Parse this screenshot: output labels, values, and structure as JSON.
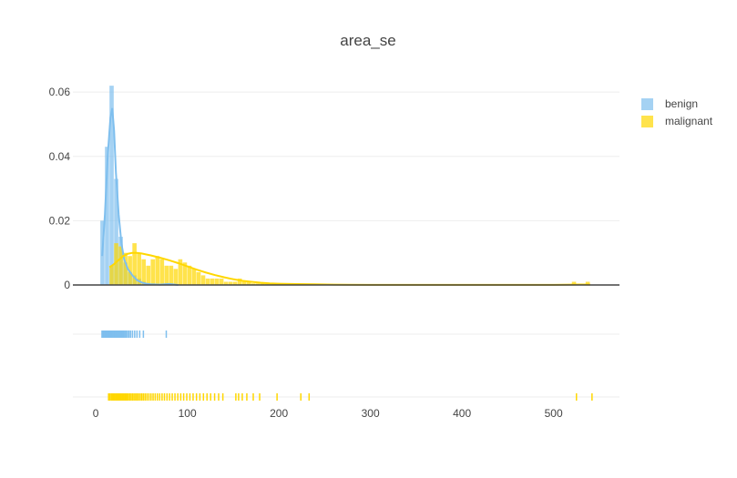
{
  "chart_data": {
    "type": "histogram",
    "title": "area_se",
    "xlabel": "",
    "ylabel": "",
    "xlim": [
      -25,
      572
    ],
    "ylim": [
      0,
      0.066
    ],
    "x_ticks": [
      0,
      100,
      200,
      300,
      400,
      500
    ],
    "x_tick_labels": [
      "0",
      "100",
      "200",
      "300",
      "400",
      "500"
    ],
    "y_ticks": [
      0,
      0.02,
      0.04,
      0.06
    ],
    "y_tick_labels": [
      "0",
      "0.02",
      "0.04",
      "0.06"
    ],
    "grid": true,
    "legend_position": "top-right",
    "bin_width": 5,
    "series": [
      {
        "name": "benign",
        "color": "#7fbfee",
        "bin_starts": [
          5,
          10,
          15,
          20,
          25,
          30,
          35,
          40,
          45,
          50,
          55,
          60,
          65,
          70,
          75
        ],
        "densities": [
          0.02,
          0.043,
          0.062,
          0.033,
          0.015,
          0.007,
          0.004,
          0.003,
          0.002,
          0.001,
          0.0005,
          0.0005,
          0.0003,
          0.0003,
          0.0005
        ],
        "kde_x": [
          7,
          10,
          13,
          16,
          18,
          20,
          22,
          25,
          28,
          31,
          35,
          40,
          45,
          50,
          55,
          60,
          70,
          80,
          90
        ],
        "kde_y": [
          0.009,
          0.022,
          0.04,
          0.052,
          0.055,
          0.048,
          0.035,
          0.022,
          0.013,
          0.008,
          0.005,
          0.003,
          0.0015,
          0.0008,
          0.0004,
          0.0002,
          0.0001,
          0.0003,
          0.0
        ],
        "rug": [
          6.8,
          7.5,
          8.1,
          8.9,
          9.4,
          10.1,
          10.7,
          11.3,
          11.9,
          12.5,
          13.2,
          13.8,
          14.4,
          15.1,
          15.7,
          16.3,
          17.0,
          17.6,
          18.2,
          18.9,
          19.5,
          20.1,
          20.8,
          21.4,
          22.0,
          22.7,
          23.3,
          24.0,
          24.8,
          25.6,
          26.5,
          27.4,
          28.3,
          29.3,
          30.2,
          31.5,
          33.0,
          34.6,
          36.2,
          38.0,
          40.1,
          42.5,
          45.0,
          48.0,
          52.0,
          77.0
        ]
      },
      {
        "name": "malignant",
        "color": "#ffd700",
        "bin_starts": [
          15,
          20,
          25,
          30,
          35,
          40,
          45,
          50,
          55,
          60,
          65,
          70,
          75,
          80,
          85,
          90,
          95,
          100,
          105,
          110,
          115,
          120,
          125,
          130,
          135,
          140,
          145,
          150,
          155,
          160,
          165,
          170,
          175,
          180,
          185,
          190,
          195,
          200,
          205,
          210,
          215,
          220,
          225,
          230,
          235,
          240,
          520,
          535
        ],
        "densities": [
          0.006,
          0.013,
          0.012,
          0.01,
          0.009,
          0.013,
          0.01,
          0.008,
          0.006,
          0.008,
          0.009,
          0.008,
          0.006,
          0.006,
          0.005,
          0.008,
          0.007,
          0.006,
          0.005,
          0.004,
          0.003,
          0.002,
          0.002,
          0.002,
          0.002,
          0.001,
          0.001,
          0.001,
          0.002,
          0.001,
          0.001,
          0.0005,
          0.0005,
          0.0005,
          0.0003,
          0.0003,
          0.0005,
          0.0003,
          0.0003,
          0.0002,
          0.0002,
          0.0002,
          0.0003,
          0.0003,
          0.0002,
          0.0002,
          0.001,
          0.001
        ],
        "kde_x": [
          15,
          20,
          25,
          30,
          35,
          40,
          45,
          50,
          60,
          70,
          80,
          90,
          100,
          110,
          120,
          130,
          140,
          150,
          160,
          170,
          180,
          190,
          200,
          220,
          240,
          260,
          300,
          350,
          400,
          450,
          500,
          520,
          530,
          540
        ],
        "kde_y": [
          0.0055,
          0.0065,
          0.0078,
          0.009,
          0.0097,
          0.01,
          0.01,
          0.0098,
          0.0092,
          0.0085,
          0.0077,
          0.0068,
          0.0058,
          0.0048,
          0.0039,
          0.0031,
          0.0024,
          0.0018,
          0.0013,
          0.001,
          0.0007,
          0.0005,
          0.0004,
          0.0003,
          0.0002,
          0.0001,
          5e-05,
          3e-05,
          2e-05,
          2e-05,
          3e-05,
          0.0001,
          0.00015,
          0.0001
        ],
        "rug": [
          14.0,
          15.3,
          16.8,
          18.0,
          19.1,
          20.4,
          21.6,
          22.7,
          24.0,
          25.2,
          26.5,
          27.7,
          29.0,
          30.2,
          31.5,
          32.8,
          34.0,
          35.5,
          37.1,
          38.6,
          40.2,
          41.8,
          43.5,
          45.1,
          46.8,
          48.6,
          50.3,
          52.1,
          54.0,
          56.0,
          58.1,
          60.3,
          62.6,
          64.9,
          67.3,
          69.8,
          72.4,
          75.0,
          77.8,
          80.6,
          83.5,
          86.5,
          89.6,
          92.8,
          96.0,
          99.4,
          102.8,
          106.3,
          110.0,
          113.7,
          117.6,
          121.5,
          125.5,
          129.8,
          134.2,
          138.8,
          153.0,
          156.0,
          160.0,
          165.0,
          172.0,
          179.0,
          198.0,
          224.0,
          233.0,
          525.0,
          542.0
        ]
      }
    ]
  }
}
